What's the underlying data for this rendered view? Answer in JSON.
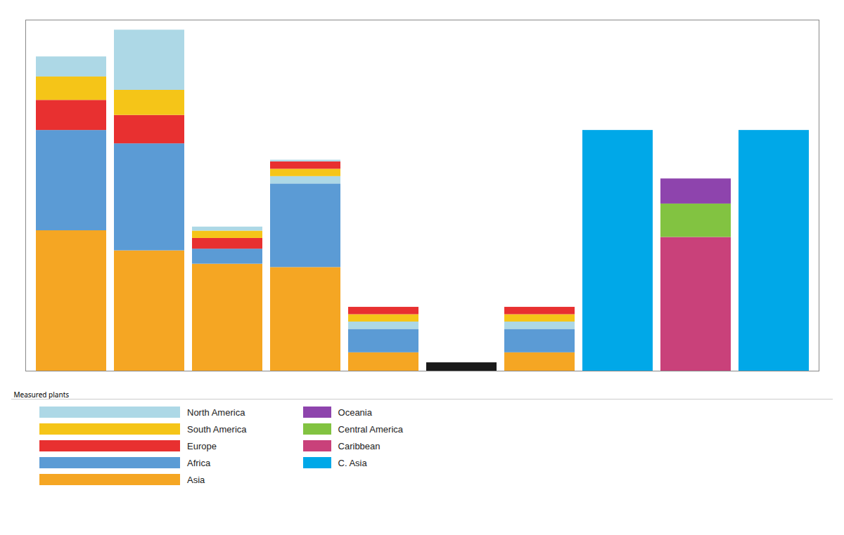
{
  "chart_data": {
    "type": "bar",
    "stacked": true,
    "tick_labels": false,
    "xlabel": "Measured plants",
    "categories": [
      null,
      null,
      null,
      null,
      null,
      null,
      null,
      null,
      null,
      null
    ],
    "ylim": [
      0,
      10.5
    ],
    "series": [
      {
        "values": [
          4.2,
          3.6,
          3.2,
          3.1,
          0.55,
          0.25,
          0.55,
          7.2,
          4.0,
          7.2
        ],
        "colors": [
          "#F5A623",
          "#F5A623",
          "#F5A623",
          "#F5A623",
          "#F5A623",
          "#1A1A1A",
          "#F5A623",
          "#00A8E8",
          "#C9417A",
          "#00A8E8"
        ]
      },
      {
        "values": [
          3.0,
          3.2,
          0.45,
          2.5,
          0.7,
          null,
          0.7,
          null,
          1.0,
          null
        ],
        "colors": [
          "#5B9BD5",
          "#5B9BD5",
          "#5B9BD5",
          "#5B9BD5",
          "#5B9BD5",
          null,
          "#5B9BD5",
          null,
          "#82C341",
          null
        ]
      },
      {
        "values": [
          0.9,
          0.85,
          0.32,
          0.22,
          0.22,
          null,
          0.22,
          null,
          0.75,
          null
        ],
        "colors": [
          "#E83030",
          "#E83030",
          "#E83030",
          "#ADD8E6",
          "#ADD8E6",
          null,
          "#ADD8E6",
          null,
          "#8E44AD",
          null
        ]
      },
      {
        "values": [
          0.7,
          0.75,
          0.22,
          0.22,
          0.22,
          null,
          0.22,
          null,
          null,
          null
        ],
        "colors": [
          "#F5C518",
          "#F5C518",
          "#F5C518",
          "#F5C518",
          "#F5C518",
          null,
          "#F5C518",
          null,
          null,
          null
        ]
      },
      {
        "values": [
          0.6,
          1.8,
          0.12,
          0.22,
          0.22,
          null,
          0.22,
          null,
          null,
          null
        ],
        "colors": [
          "#ADD8E6",
          "#ADD8E6",
          "#ADD8E6",
          "#E83030",
          "#E83030",
          null,
          "#E83030",
          null,
          null,
          null
        ]
      },
      {
        "values": [
          null,
          null,
          null,
          0.05,
          null,
          null,
          null,
          null,
          null,
          null
        ],
        "colors": [
          null,
          null,
          null,
          "#ADD8E6",
          null,
          null,
          null,
          null,
          null,
          null
        ]
      }
    ],
    "legend_entries": [
      [
        {
          "name": "North America",
          "color": "#ADD8E6"
        },
        {
          "name": "South America",
          "color": "#F5C518"
        },
        {
          "name": "Europe",
          "color": "#E83030"
        },
        {
          "name": "Africa",
          "color": "#5B9BD5"
        },
        {
          "name": "Asia",
          "color": "#F5A623"
        }
      ],
      [
        {
          "name": "Oceania",
          "color": "#8E44AD"
        },
        {
          "name": "Central America",
          "color": "#82C341"
        },
        {
          "name": "Caribbean",
          "color": "#C9417A"
        },
        {
          "name": "C. Asia",
          "color": "#00A8E8"
        }
      ]
    ]
  }
}
